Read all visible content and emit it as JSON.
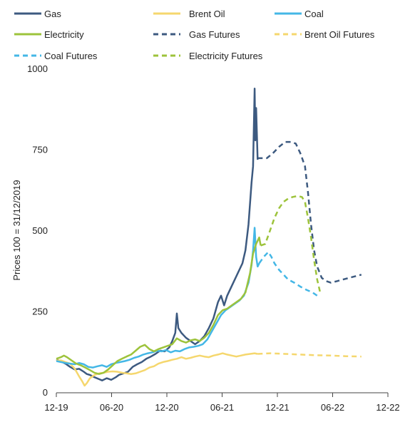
{
  "chart_data": {
    "type": "line",
    "ylabel": "Prices 100 = 31/12/2019",
    "xlabel": "",
    "ylim": [
      0,
      1000
    ],
    "y_ticks": [
      0,
      250,
      500,
      750,
      1000
    ],
    "x_ticks": [
      "12-19",
      "06-20",
      "12-20",
      "06-21",
      "12-21",
      "06-22",
      "12-22"
    ],
    "grid": false,
    "legend_position": "top",
    "series": [
      {
        "name": "Gas",
        "style": "solid",
        "color": "#3D5A80",
        "points": [
          [
            0,
            103
          ],
          [
            0.3,
            97
          ],
          [
            0.6,
            90
          ],
          [
            0.9,
            80
          ],
          [
            1.2,
            72
          ],
          [
            1.5,
            74
          ],
          [
            1.8,
            65
          ],
          [
            2.0,
            58
          ],
          [
            2.2,
            55
          ],
          [
            2.5,
            48
          ],
          [
            2.8,
            42
          ],
          [
            3.0,
            38
          ],
          [
            3.3,
            45
          ],
          [
            3.6,
            40
          ],
          [
            3.9,
            48
          ],
          [
            4.1,
            55
          ],
          [
            4.4,
            60
          ],
          [
            4.7,
            65
          ],
          [
            5.0,
            80
          ],
          [
            5.3,
            88
          ],
          [
            5.6,
            95
          ],
          [
            5.9,
            105
          ],
          [
            6.2,
            112
          ],
          [
            6.5,
            120
          ],
          [
            6.8,
            130
          ],
          [
            7.1,
            128
          ],
          [
            7.4,
            140
          ],
          [
            7.6,
            160
          ],
          [
            7.8,
            185
          ],
          [
            7.9,
            245
          ],
          [
            8.0,
            200
          ],
          [
            8.2,
            185
          ],
          [
            8.5,
            170
          ],
          [
            8.8,
            160
          ],
          [
            9.1,
            150
          ],
          [
            9.4,
            160
          ],
          [
            9.7,
            175
          ],
          [
            10.0,
            200
          ],
          [
            10.3,
            230
          ],
          [
            10.6,
            280
          ],
          [
            10.8,
            300
          ],
          [
            11.0,
            270
          ],
          [
            11.2,
            300
          ],
          [
            11.5,
            330
          ],
          [
            11.8,
            360
          ],
          [
            12.0,
            380
          ],
          [
            12.2,
            400
          ],
          [
            12.4,
            440
          ],
          [
            12.6,
            520
          ],
          [
            12.8,
            650
          ],
          [
            12.9,
            700
          ],
          [
            13.0,
            940
          ],
          [
            13.05,
            780
          ],
          [
            13.1,
            880
          ],
          [
            13.2,
            720
          ]
        ]
      },
      {
        "name": "Brent Oil",
        "style": "solid",
        "color": "#F5D76E",
        "points": [
          [
            0,
            100
          ],
          [
            0.3,
            100
          ],
          [
            0.6,
            95
          ],
          [
            0.9,
            90
          ],
          [
            1.2,
            75
          ],
          [
            1.5,
            50
          ],
          [
            1.7,
            35
          ],
          [
            1.85,
            22
          ],
          [
            2.0,
            30
          ],
          [
            2.2,
            45
          ],
          [
            2.5,
            55
          ],
          [
            2.8,
            60
          ],
          [
            3.1,
            62
          ],
          [
            3.4,
            65
          ],
          [
            3.7,
            66
          ],
          [
            4.0,
            65
          ],
          [
            4.3,
            62
          ],
          [
            4.6,
            60
          ],
          [
            4.9,
            58
          ],
          [
            5.2,
            60
          ],
          [
            5.5,
            65
          ],
          [
            5.8,
            70
          ],
          [
            6.1,
            78
          ],
          [
            6.4,
            82
          ],
          [
            6.7,
            90
          ],
          [
            7.0,
            95
          ],
          [
            7.3,
            98
          ],
          [
            7.6,
            102
          ],
          [
            7.9,
            105
          ],
          [
            8.2,
            110
          ],
          [
            8.5,
            105
          ],
          [
            8.8,
            108
          ],
          [
            9.1,
            112
          ],
          [
            9.4,
            115
          ],
          [
            9.7,
            112
          ],
          [
            10.0,
            110
          ],
          [
            10.3,
            115
          ],
          [
            10.6,
            118
          ],
          [
            10.9,
            122
          ],
          [
            11.2,
            118
          ],
          [
            11.5,
            115
          ],
          [
            11.8,
            112
          ],
          [
            12.1,
            115
          ],
          [
            12.4,
            118
          ],
          [
            12.7,
            120
          ],
          [
            13.0,
            122
          ],
          [
            13.2,
            120
          ]
        ]
      },
      {
        "name": "Coal",
        "style": "solid",
        "color": "#44B7E6",
        "points": [
          [
            0,
            98
          ],
          [
            0.3,
            95
          ],
          [
            0.6,
            92
          ],
          [
            0.9,
            90
          ],
          [
            1.2,
            88
          ],
          [
            1.5,
            92
          ],
          [
            1.8,
            88
          ],
          [
            2.1,
            80
          ],
          [
            2.4,
            78
          ],
          [
            2.7,
            82
          ],
          [
            3.0,
            85
          ],
          [
            3.3,
            80
          ],
          [
            3.6,
            88
          ],
          [
            3.9,
            92
          ],
          [
            4.2,
            95
          ],
          [
            4.5,
            98
          ],
          [
            4.8,
            102
          ],
          [
            5.1,
            108
          ],
          [
            5.4,
            112
          ],
          [
            5.7,
            118
          ],
          [
            6.0,
            122
          ],
          [
            6.3,
            125
          ],
          [
            6.6,
            130
          ],
          [
            6.9,
            128
          ],
          [
            7.2,
            132
          ],
          [
            7.5,
            125
          ],
          [
            7.8,
            130
          ],
          [
            8.1,
            128
          ],
          [
            8.4,
            135
          ],
          [
            8.7,
            140
          ],
          [
            9.0,
            142
          ],
          [
            9.3,
            145
          ],
          [
            9.6,
            150
          ],
          [
            9.9,
            165
          ],
          [
            10.2,
            190
          ],
          [
            10.5,
            215
          ],
          [
            10.8,
            240
          ],
          [
            11.1,
            255
          ],
          [
            11.4,
            265
          ],
          [
            11.7,
            275
          ],
          [
            12.0,
            285
          ],
          [
            12.3,
            300
          ],
          [
            12.6,
            340
          ],
          [
            12.8,
            395
          ],
          [
            12.9,
            440
          ],
          [
            13.0,
            510
          ],
          [
            13.1,
            420
          ],
          [
            13.2,
            390
          ],
          [
            13.3,
            400
          ]
        ]
      },
      {
        "name": "Electricity",
        "style": "solid",
        "color": "#9DC33B",
        "points": [
          [
            0,
            105
          ],
          [
            0.3,
            110
          ],
          [
            0.5,
            115
          ],
          [
            0.7,
            110
          ],
          [
            1.0,
            100
          ],
          [
            1.3,
            90
          ],
          [
            1.6,
            85
          ],
          [
            1.9,
            78
          ],
          [
            2.2,
            70
          ],
          [
            2.5,
            62
          ],
          [
            2.8,
            58
          ],
          [
            3.1,
            62
          ],
          [
            3.4,
            72
          ],
          [
            3.7,
            85
          ],
          [
            4.0,
            98
          ],
          [
            4.3,
            105
          ],
          [
            4.6,
            112
          ],
          [
            4.9,
            118
          ],
          [
            5.2,
            130
          ],
          [
            5.5,
            142
          ],
          [
            5.8,
            148
          ],
          [
            6.1,
            135
          ],
          [
            6.4,
            128
          ],
          [
            6.7,
            135
          ],
          [
            7.0,
            140
          ],
          [
            7.3,
            145
          ],
          [
            7.6,
            150
          ],
          [
            7.9,
            168
          ],
          [
            8.2,
            160
          ],
          [
            8.5,
            155
          ],
          [
            8.8,
            162
          ],
          [
            9.1,
            165
          ],
          [
            9.4,
            160
          ],
          [
            9.7,
            170
          ],
          [
            10.0,
            185
          ],
          [
            10.3,
            210
          ],
          [
            10.6,
            240
          ],
          [
            10.9,
            255
          ],
          [
            11.2,
            260
          ],
          [
            11.5,
            270
          ],
          [
            11.8,
            280
          ],
          [
            12.1,
            290
          ],
          [
            12.4,
            310
          ],
          [
            12.7,
            370
          ],
          [
            12.9,
            430
          ],
          [
            13.1,
            460
          ],
          [
            13.3,
            480
          ],
          [
            13.4,
            455
          ]
        ]
      },
      {
        "name": "Gas Futures",
        "style": "dashed",
        "color": "#3D5A80",
        "points": [
          [
            13.2,
            725
          ],
          [
            13.5,
            725
          ],
          [
            13.8,
            725
          ],
          [
            14.2,
            740
          ],
          [
            14.6,
            760
          ],
          [
            15.0,
            775
          ],
          [
            15.4,
            775
          ],
          [
            15.7,
            770
          ],
          [
            16.0,
            740
          ],
          [
            16.3,
            700
          ],
          [
            16.5,
            620
          ],
          [
            16.7,
            520
          ],
          [
            16.9,
            440
          ],
          [
            17.1,
            390
          ],
          [
            17.4,
            355
          ],
          [
            17.7,
            345
          ],
          [
            18.0,
            340
          ],
          [
            18.4,
            345
          ],
          [
            18.8,
            350
          ],
          [
            19.2,
            355
          ],
          [
            19.6,
            360
          ],
          [
            20.0,
            365
          ]
        ]
      },
      {
        "name": "Brent Oil Futures",
        "style": "dashed",
        "color": "#F5D76E",
        "points": [
          [
            13.2,
            120
          ],
          [
            14.0,
            122
          ],
          [
            15.0,
            120
          ],
          [
            16.0,
            118
          ],
          [
            17.0,
            116
          ],
          [
            18.0,
            115
          ],
          [
            19.0,
            113
          ],
          [
            20.0,
            112
          ]
        ]
      },
      {
        "name": "Coal Futures",
        "style": "dashed",
        "color": "#44B7E6",
        "points": [
          [
            13.3,
            400
          ],
          [
            13.6,
            420
          ],
          [
            13.9,
            435
          ],
          [
            14.1,
            420
          ],
          [
            14.3,
            400
          ],
          [
            14.6,
            380
          ],
          [
            14.9,
            365
          ],
          [
            15.2,
            350
          ],
          [
            15.6,
            340
          ],
          [
            16.0,
            328
          ],
          [
            16.4,
            318
          ],
          [
            16.8,
            310
          ],
          [
            17.1,
            300
          ]
        ]
      },
      {
        "name": "Electricity Futures",
        "style": "dashed",
        "color": "#9DC33B",
        "points": [
          [
            13.4,
            455
          ],
          [
            13.7,
            460
          ],
          [
            14.0,
            500
          ],
          [
            14.3,
            540
          ],
          [
            14.6,
            570
          ],
          [
            14.9,
            590
          ],
          [
            15.2,
            600
          ],
          [
            15.5,
            605
          ],
          [
            15.8,
            608
          ],
          [
            16.1,
            605
          ],
          [
            16.3,
            590
          ],
          [
            16.5,
            540
          ],
          [
            16.7,
            480
          ],
          [
            16.9,
            410
          ],
          [
            17.1,
            350
          ],
          [
            17.3,
            310
          ]
        ]
      }
    ]
  }
}
